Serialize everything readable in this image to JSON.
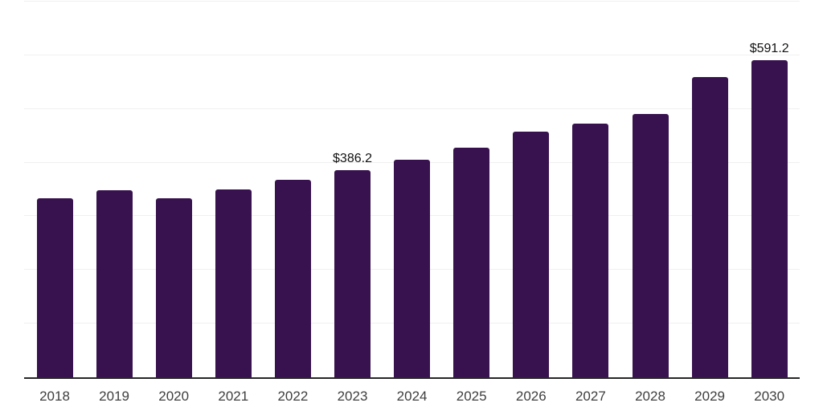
{
  "chart_data": {
    "type": "bar",
    "title": "",
    "xlabel": "",
    "ylabel": "",
    "categories": [
      "2018",
      "2019",
      "2020",
      "2021",
      "2022",
      "2023",
      "2024",
      "2025",
      "2026",
      "2027",
      "2028",
      "2029",
      "2030"
    ],
    "values": [
      334,
      348,
      333,
      350,
      368,
      386.2,
      406,
      428,
      458,
      472,
      490,
      559,
      591.2
    ],
    "data_labels": [
      "",
      "",
      "",
      "",
      "",
      "$386.2",
      "",
      "",
      "",
      "",
      "",
      "",
      "$591.2"
    ],
    "ylim": [
      0,
      700
    ],
    "grid": {
      "show": true,
      "step": 100,
      "y_tick_labels_visible": false
    },
    "legend": {
      "visible": false
    },
    "colors": {
      "bar": "#38124e",
      "axis_line": "#262626",
      "gridline": "#f0f0f0",
      "tick_label": "#3e3e3e",
      "data_label": "#111111",
      "background": "#ffffff"
    }
  }
}
